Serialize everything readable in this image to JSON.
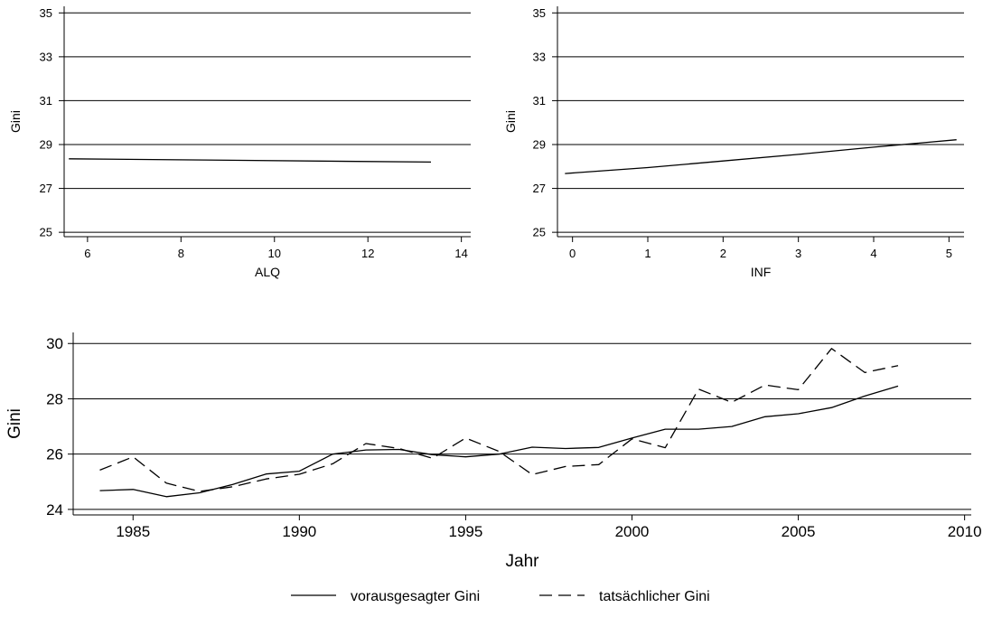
{
  "chart_data": [
    {
      "type": "line",
      "xlabel": "ALQ",
      "ylabel": "Gini",
      "xlim": [
        5.5,
        14.2
      ],
      "ylim": [
        24.8,
        35.3
      ],
      "xticks": [
        6,
        8,
        10,
        12,
        14
      ],
      "yticks": [
        25,
        27,
        29,
        31,
        33,
        35
      ],
      "grid": "horizontal",
      "series": [
        {
          "style": "solid",
          "x": [
            5.6,
            13.35
          ],
          "y": [
            28.35,
            28.2
          ]
        }
      ]
    },
    {
      "type": "line",
      "xlabel": "INF",
      "ylabel": "Gini",
      "xlim": [
        -0.2,
        5.2
      ],
      "ylim": [
        24.8,
        35.3
      ],
      "xticks": [
        0,
        1,
        2,
        3,
        4,
        5
      ],
      "yticks": [
        25,
        27,
        29,
        31,
        33,
        35
      ],
      "grid": "horizontal",
      "series": [
        {
          "style": "solid",
          "x": [
            -0.1,
            1,
            2,
            3,
            4,
            5.1
          ],
          "y": [
            27.68,
            27.95,
            28.25,
            28.55,
            28.88,
            29.22
          ]
        }
      ]
    },
    {
      "type": "line",
      "xlabel": "Jahr",
      "ylabel": "Gini",
      "xlim": [
        1983.2,
        2010.2
      ],
      "ylim": [
        23.8,
        30.4
      ],
      "xticks": [
        1985,
        1990,
        1995,
        2000,
        2005,
        2010
      ],
      "yticks": [
        24,
        26,
        28,
        30
      ],
      "grid": "horizontal",
      "legend_position": "bottom",
      "series": [
        {
          "name": "vorausgesagter Gini",
          "style": "solid",
          "x": [
            1984,
            1985,
            1986,
            1987,
            1988,
            1989,
            1990,
            1991,
            1992,
            1993,
            1994,
            1995,
            1996,
            1997,
            1998,
            1999,
            2000,
            2001,
            2002,
            2003,
            2004,
            2005,
            2006,
            2007,
            2008
          ],
          "y": [
            24.68,
            24.72,
            24.46,
            24.6,
            24.9,
            25.28,
            25.38,
            26.0,
            26.15,
            26.17,
            25.98,
            25.9,
            26.0,
            26.25,
            26.2,
            26.24,
            26.58,
            26.9,
            26.9,
            27.0,
            27.35,
            27.46,
            27.68,
            28.1,
            28.46
          ]
        },
        {
          "name": "tatsächlicher Gini",
          "style": "dashed",
          "x": [
            1984,
            1985,
            1986,
            1987,
            1988,
            1989,
            1990,
            1991,
            1992,
            1993,
            1994,
            1995,
            1996,
            1997,
            1998,
            1999,
            2000,
            2001,
            2002,
            2003,
            2004,
            2005,
            2006,
            2007,
            2008
          ],
          "y": [
            25.42,
            25.9,
            24.95,
            24.65,
            24.82,
            25.1,
            25.27,
            25.65,
            26.38,
            26.2,
            25.85,
            26.58,
            26.1,
            25.26,
            25.55,
            25.62,
            26.55,
            26.23,
            28.35,
            27.87,
            28.5,
            28.33,
            29.82,
            28.95,
            29.2
          ]
        }
      ]
    }
  ]
}
